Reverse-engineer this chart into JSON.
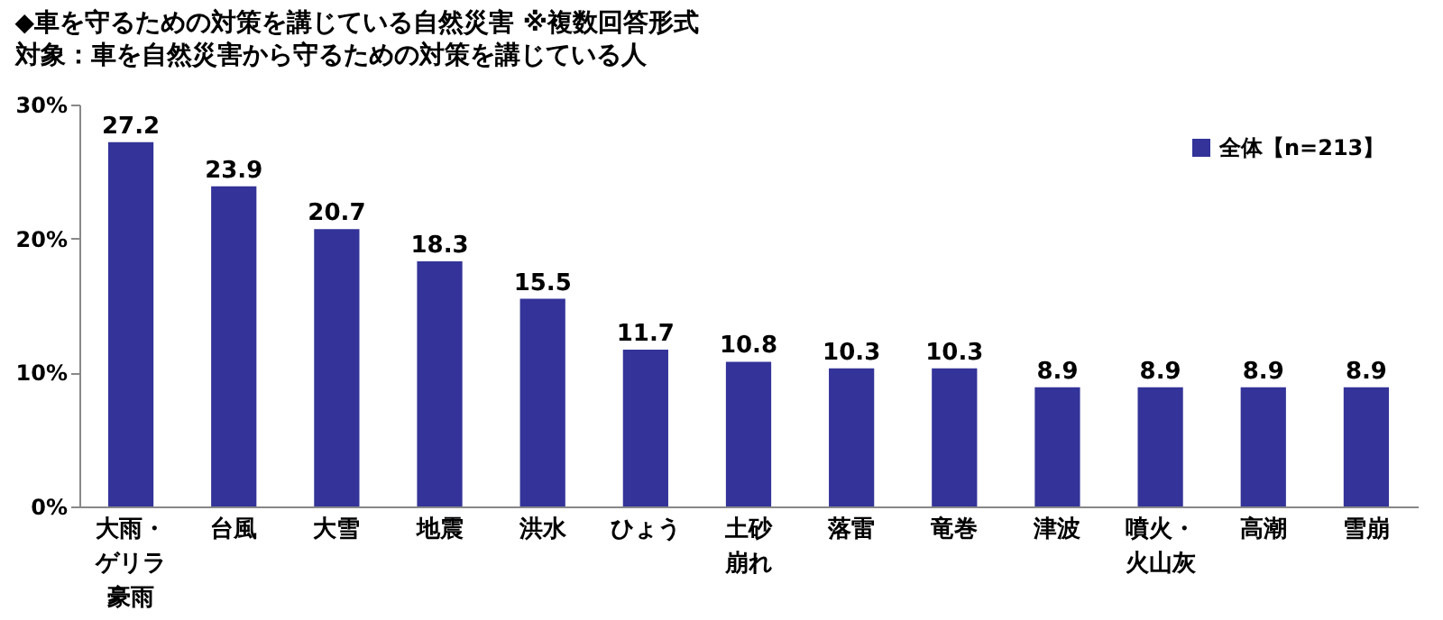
{
  "chart_data": {
    "type": "bar",
    "title": "◆車を守るための対策を講じている自然災害 ※複数回答形式",
    "subtitle": "対象：車を自然災害から守るための対策を講じている人",
    "categories": [
      "大雨・ゲリラ豪雨",
      "台風",
      "大雪",
      "地震",
      "洪水",
      "ひょう",
      "土砂崩れ",
      "落雷",
      "竜巻",
      "津波",
      "噴火・火山灰",
      "高潮",
      "雪崩"
    ],
    "series": [
      {
        "name": "全体【n=213】",
        "color": "#333399",
        "values": [
          27.2,
          23.9,
          20.7,
          18.3,
          15.5,
          11.7,
          10.8,
          10.3,
          10.3,
          8.9,
          8.9,
          8.9,
          8.9
        ]
      }
    ],
    "ylim": [
      0,
      30
    ],
    "yticks": [
      {
        "value": 0,
        "label": "0%"
      },
      {
        "value": 10,
        "label": "10%"
      },
      {
        "value": 20,
        "label": "20%"
      },
      {
        "value": 30,
        "label": "30%"
      }
    ],
    "data_labels": true,
    "legend": "top right",
    "grid": false
  }
}
